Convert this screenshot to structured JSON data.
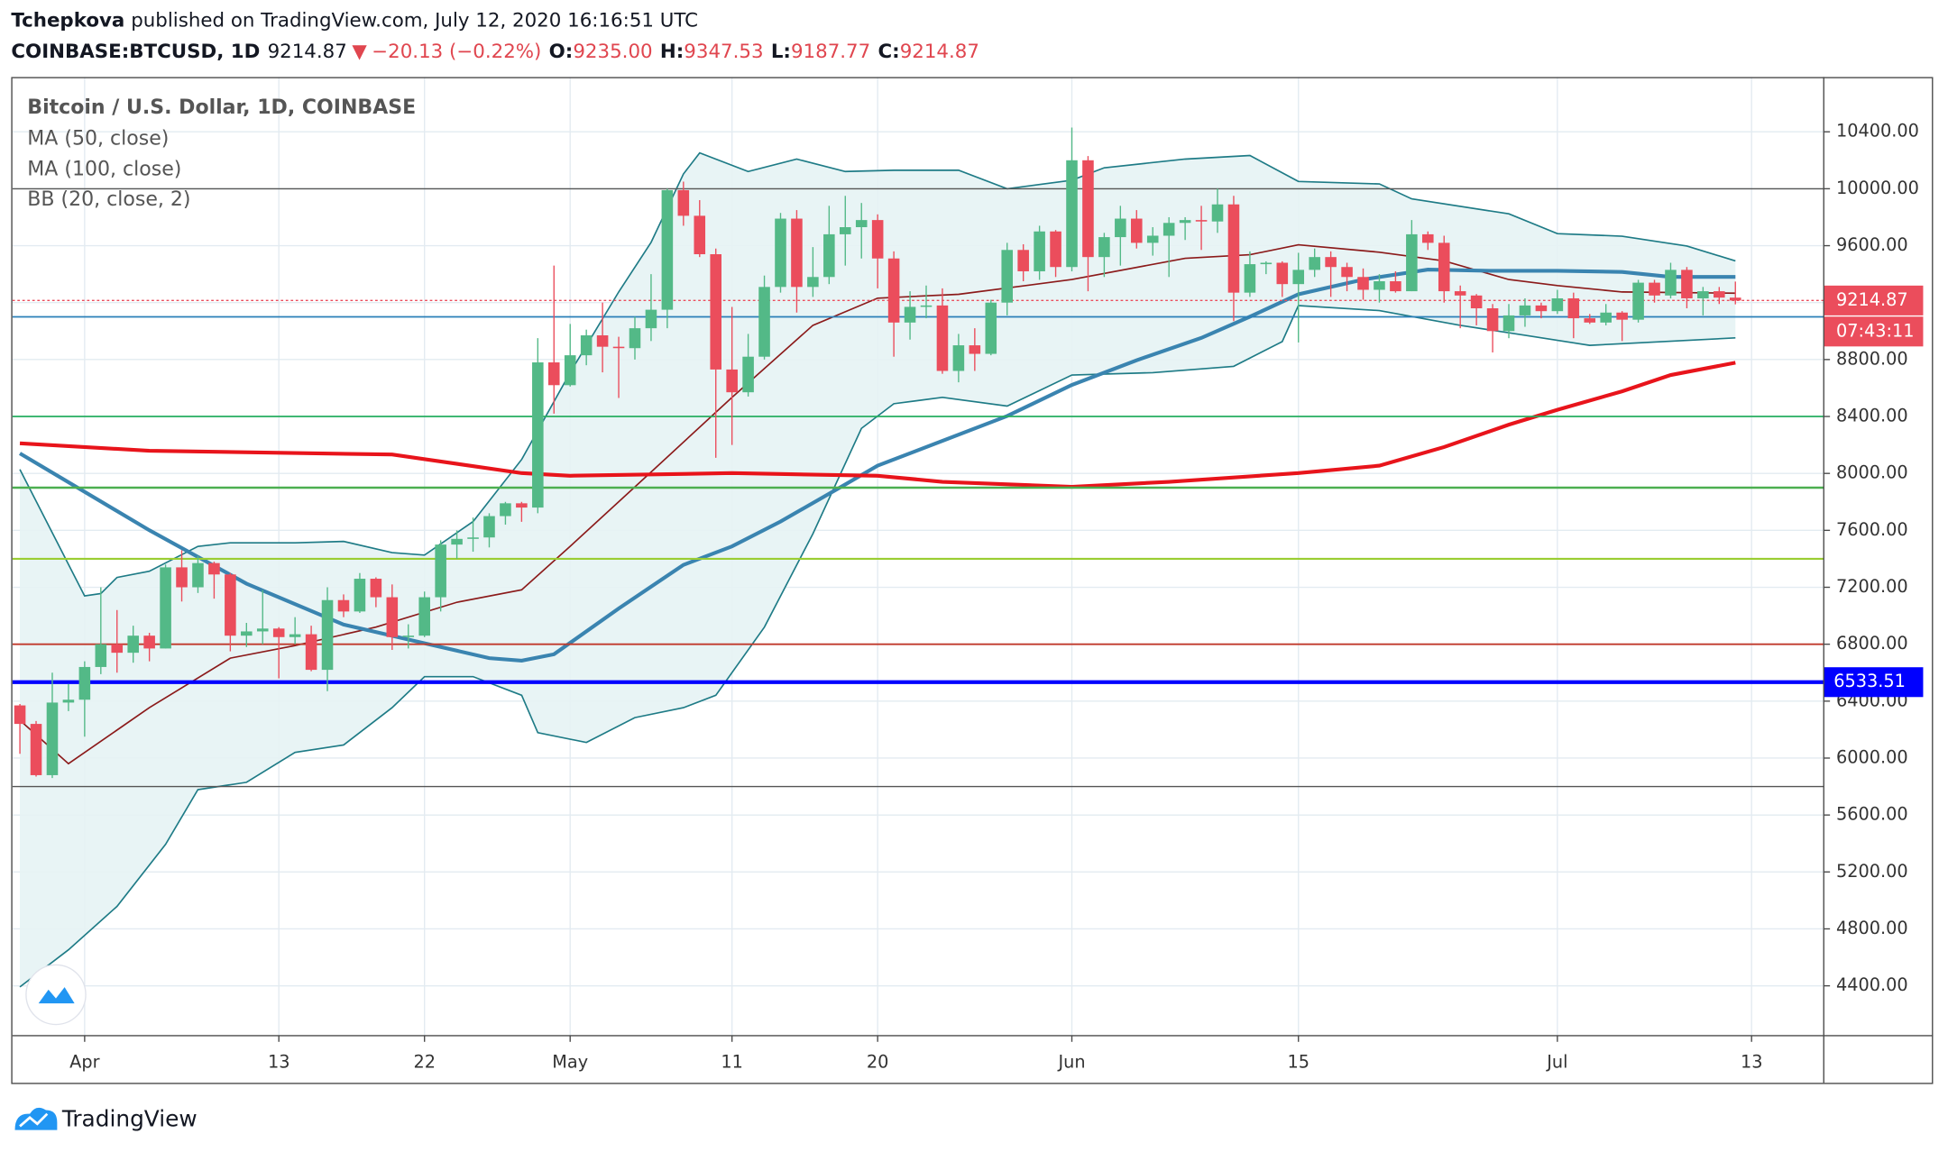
{
  "header": {
    "author": "Tchepkova",
    "published": "published on TradingView.com, July 12, 2020 16:16:51 UTC",
    "symbol": "COINBASE:BTCUSD, 1D",
    "last": "9214.87",
    "arrow": "▼",
    "change": "−20.13 (−0.22%)",
    "ohlc": [
      {
        "label": "O:",
        "value": "9235.00"
      },
      {
        "label": "H:",
        "value": "9347.53"
      },
      {
        "label": "L:",
        "value": "9187.77"
      },
      {
        "label": "C:",
        "value": "9214.87"
      }
    ]
  },
  "footer": {
    "brand": "TradingView"
  },
  "chart_data": {
    "type": "candlestick",
    "title": "Bitcoin / U.S. Dollar, 1D, COINBASE",
    "up_color": "#53b987",
    "down_color": "#eb4d5c",
    "grid": true,
    "countdown": "07:43:11",
    "xlim": [
      "2020-03-27",
      "2020-07-17"
    ],
    "ylim": [
      4050,
      10785
    ],
    "xticks": [
      {
        "value": "2020-04-01",
        "label": "Apr"
      },
      {
        "value": "2020-04-13",
        "label": "13"
      },
      {
        "value": "2020-04-22",
        "label": "22"
      },
      {
        "value": "2020-05-01",
        "label": "May"
      },
      {
        "value": "2020-05-11",
        "label": "11"
      },
      {
        "value": "2020-05-20",
        "label": "20"
      },
      {
        "value": "2020-06-01",
        "label": "Jun"
      },
      {
        "value": "2020-06-15",
        "label": "15"
      },
      {
        "value": "2020-07-01",
        "label": "Jul"
      },
      {
        "value": "2020-07-13",
        "label": "13"
      }
    ],
    "yticks": [
      {
        "value": 4400,
        "label": "4400.00"
      },
      {
        "value": 4800,
        "label": "4800.00"
      },
      {
        "value": 5200,
        "label": "5200.00"
      },
      {
        "value": 5600,
        "label": "5600.00"
      },
      {
        "value": 6000,
        "label": "6000.00"
      },
      {
        "value": 6400,
        "label": "6400.00"
      },
      {
        "value": 6800,
        "label": "6800.00"
      },
      {
        "value": 7200,
        "label": "7200.00"
      },
      {
        "value": 7600,
        "label": "7600.00"
      },
      {
        "value": 8000,
        "label": "8000.00"
      },
      {
        "value": 8400,
        "label": "8400.00"
      },
      {
        "value": 8800,
        "label": "8800.00"
      },
      {
        "value": 9200,
        "label": "9200.00"
      },
      {
        "value": 9600,
        "label": "9600.00"
      },
      {
        "value": 10000,
        "label": "10000.00"
      },
      {
        "value": 10400,
        "label": "10400.00"
      }
    ],
    "dates": [
      "2020-03-28",
      "2020-03-29",
      "2020-03-30",
      "2020-03-31",
      "2020-04-01",
      "2020-04-02",
      "2020-04-03",
      "2020-04-04",
      "2020-04-05",
      "2020-04-06",
      "2020-04-07",
      "2020-04-08",
      "2020-04-09",
      "2020-04-10",
      "2020-04-11",
      "2020-04-12",
      "2020-04-13",
      "2020-04-14",
      "2020-04-15",
      "2020-04-16",
      "2020-04-17",
      "2020-04-18",
      "2020-04-19",
      "2020-04-20",
      "2020-04-21",
      "2020-04-22",
      "2020-04-23",
      "2020-04-24",
      "2020-04-25",
      "2020-04-26",
      "2020-04-27",
      "2020-04-28",
      "2020-04-29",
      "2020-04-30",
      "2020-05-01",
      "2020-05-02",
      "2020-05-03",
      "2020-05-04",
      "2020-05-05",
      "2020-05-06",
      "2020-05-07",
      "2020-05-08",
      "2020-05-09",
      "2020-05-10",
      "2020-05-11",
      "2020-05-12",
      "2020-05-13",
      "2020-05-14",
      "2020-05-15",
      "2020-05-16",
      "2020-05-17",
      "2020-05-18",
      "2020-05-19",
      "2020-05-20",
      "2020-05-21",
      "2020-05-22",
      "2020-05-23",
      "2020-05-24",
      "2020-05-25",
      "2020-05-26",
      "2020-05-27",
      "2020-05-28",
      "2020-05-29",
      "2020-05-30",
      "2020-05-31",
      "2020-06-01",
      "2020-06-02",
      "2020-06-03",
      "2020-06-04",
      "2020-06-05",
      "2020-06-06",
      "2020-06-07",
      "2020-06-08",
      "2020-06-09",
      "2020-06-10",
      "2020-06-11",
      "2020-06-12",
      "2020-06-13",
      "2020-06-14",
      "2020-06-15",
      "2020-06-16",
      "2020-06-17",
      "2020-06-18",
      "2020-06-19",
      "2020-06-20",
      "2020-06-21",
      "2020-06-22",
      "2020-06-23",
      "2020-06-24",
      "2020-06-25",
      "2020-06-26",
      "2020-06-27",
      "2020-06-28",
      "2020-06-29",
      "2020-06-30",
      "2020-07-01",
      "2020-07-02",
      "2020-07-03",
      "2020-07-04",
      "2020-07-05",
      "2020-07-06",
      "2020-07-07",
      "2020-07-08",
      "2020-07-09",
      "2020-07-10",
      "2020-07-11",
      "2020-07-12"
    ],
    "open": [
      6370,
      6240,
      5880,
      6390,
      6410,
      6640,
      6800,
      6740,
      6860,
      6770,
      7340,
      7200,
      7370,
      7290,
      6860,
      6890,
      6910,
      6850,
      6870,
      6620,
      7110,
      7030,
      7260,
      7130,
      6850,
      6860,
      7130,
      7500,
      7540,
      7550,
      7700,
      7790,
      7760,
      8780,
      8620,
      8830,
      8970,
      8890,
      8880,
      9020,
      9150,
      9990,
      9810,
      9540,
      8730,
      8570,
      8820,
      9310,
      9790,
      9310,
      9380,
      9680,
      9730,
      9780,
      9510,
      9060,
      9170,
      9180,
      8720,
      8900,
      8840,
      9200,
      9570,
      9420,
      9700,
      9450,
      10200,
      9520,
      9660,
      9790,
      9620,
      9670,
      9760,
      9780,
      9770,
      9890,
      9270,
      9470,
      9480,
      9330,
      9430,
      9520,
      9450,
      9380,
      9290,
      9350,
      9280,
      9680,
      9620,
      9280,
      9250,
      9160,
      9000,
      9110,
      9180,
      9140,
      9230,
      9090,
      9060,
      9130,
      9080,
      9340,
      9250,
      9430,
      9230,
      9280,
      9235
    ],
    "high": [
      6380,
      6260,
      6600,
      6520,
      6680,
      7200,
      7040,
      6930,
      6880,
      7360,
      7460,
      7420,
      7380,
      7300,
      6950,
      7180,
      6920,
      6990,
      6930,
      7200,
      7150,
      7300,
      7270,
      7220,
      6940,
      7170,
      7530,
      7600,
      7690,
      7720,
      7800,
      7800,
      8950,
      9460,
      9050,
      9010,
      9200,
      8960,
      9100,
      9400,
      10000,
      10050,
      9920,
      9580,
      9170,
      8980,
      9390,
      9830,
      9850,
      9590,
      9880,
      9950,
      9900,
      9820,
      9560,
      9280,
      9320,
      9300,
      8980,
      9020,
      9220,
      9620,
      9610,
      9740,
      9710,
      10430,
      10230,
      9690,
      9880,
      9850,
      9730,
      9800,
      9800,
      9880,
      10000,
      9950,
      9560,
      9490,
      9490,
      9550,
      9580,
      9560,
      9480,
      9440,
      9400,
      9420,
      9780,
      9700,
      9670,
      9320,
      9260,
      9190,
      9190,
      9230,
      9200,
      9290,
      9270,
      9120,
      9190,
      9140,
      9360,
      9360,
      9480,
      9450,
      9310,
      9310,
      9347.53
    ],
    "low": [
      6030,
      5870,
      5860,
      6330,
      6150,
      6590,
      6600,
      6670,
      6680,
      6770,
      7100,
      7160,
      7120,
      6750,
      6780,
      6800,
      6560,
      6800,
      6610,
      6470,
      6990,
      7020,
      7060,
      6760,
      6770,
      6850,
      7030,
      7400,
      7450,
      7480,
      7640,
      7660,
      7720,
      8420,
      8610,
      8760,
      8710,
      8530,
      8800,
      8930,
      9020,
      9740,
      9520,
      8110,
      8200,
      8540,
      8800,
      9270,
      9130,
      9240,
      9330,
      9460,
      9510,
      9300,
      8820,
      8940,
      9090,
      8700,
      8640,
      8720,
      8830,
      9110,
      9350,
      9360,
      9380,
      9420,
      9280,
      9380,
      9460,
      9580,
      9530,
      9380,
      9640,
      9570,
      9690,
      9070,
      9240,
      9400,
      9240,
      8920,
      9380,
      9240,
      9280,
      9220,
      9200,
      9270,
      9280,
      9570,
      9200,
      9020,
      9040,
      8850,
      8950,
      9030,
      9090,
      9120,
      8950,
      9050,
      9040,
      8930,
      9060,
      9200,
      9230,
      9160,
      9110,
      9190,
      9187.77
    ],
    "close": [
      6240,
      5880,
      6390,
      6410,
      6640,
      6800,
      6740,
      6860,
      6770,
      7340,
      7200,
      7370,
      7290,
      6860,
      6890,
      6910,
      6850,
      6870,
      6620,
      7110,
      7030,
      7260,
      7130,
      6850,
      6860,
      7130,
      7500,
      7540,
      7550,
      7700,
      7790,
      7760,
      8780,
      8620,
      8830,
      8970,
      8890,
      8880,
      9020,
      9150,
      9990,
      9810,
      9540,
      8730,
      8570,
      8820,
      9310,
      9790,
      9310,
      9380,
      9680,
      9730,
      9780,
      9510,
      9060,
      9170,
      9180,
      8720,
      8900,
      8840,
      9200,
      9570,
      9420,
      9700,
      9450,
      10200,
      9520,
      9660,
      9790,
      9620,
      9670,
      9760,
      9780,
      9770,
      9890,
      9270,
      9470,
      9480,
      9330,
      9430,
      9520,
      9450,
      9380,
      9290,
      9350,
      9280,
      9680,
      9620,
      9280,
      9250,
      9160,
      9000,
      9110,
      9180,
      9140,
      9230,
      9090,
      9060,
      9130,
      9080,
      9340,
      9250,
      9430,
      9230,
      9280,
      9235,
      9214.87
    ],
    "indicators": [
      {
        "name": "MA (50, close)",
        "color": "#3a84b0",
        "width": 3,
        "x": [
          "2020-03-28",
          "2020-04-05",
          "2020-04-11",
          "2020-04-17",
          "2020-04-22",
          "2020-04-26",
          "2020-04-28",
          "2020-04-30",
          "2020-05-04",
          "2020-05-08",
          "2020-05-11",
          "2020-05-14",
          "2020-05-18",
          "2020-05-20",
          "2020-05-24",
          "2020-05-28",
          "2020-06-01",
          "2020-06-05",
          "2020-06-09",
          "2020-06-12",
          "2020-06-15",
          "2020-06-19",
          "2020-06-23",
          "2020-06-27",
          "2020-07-01",
          "2020-07-05",
          "2020-07-08",
          "2020-07-12"
        ],
        "values": [
          8141,
          7601,
          7226,
          6938,
          6807,
          6702,
          6685,
          6729,
          7051,
          7357,
          7487,
          7662,
          7923,
          8054,
          8229,
          8403,
          8621,
          8795,
          8952,
          9101,
          9258,
          9362,
          9432,
          9423,
          9423,
          9415,
          9380,
          9380
        ]
      },
      {
        "name": "MA (100, close)",
        "color": "#e8141b",
        "width": 3,
        "x": [
          "2020-03-28",
          "2020-04-05",
          "2020-04-20",
          "2020-04-28",
          "2020-05-01",
          "2020-05-11",
          "2020-05-20",
          "2020-05-24",
          "2020-06-01",
          "2020-06-07",
          "2020-06-15",
          "2020-06-20",
          "2020-06-24",
          "2020-06-28",
          "2020-07-01",
          "2020-07-05",
          "2020-07-08",
          "2020-07-12"
        ],
        "values": [
          8211,
          8159,
          8133,
          8002,
          7984,
          8002,
          7984,
          7941,
          7906,
          7941,
          8002,
          8054,
          8185,
          8342,
          8447,
          8577,
          8691,
          8778
        ]
      }
    ],
    "bb": {
      "name": "BB (20, close, 2)",
      "fill": "#e6f3f4",
      "upper": {
        "color": "#1e7b86",
        "x": [
          "2020-03-28",
          "2020-04-01",
          "2020-04-02",
          "2020-04-03",
          "2020-04-05",
          "2020-04-08",
          "2020-04-10",
          "2020-04-14",
          "2020-04-17",
          "2020-04-20",
          "2020-04-22",
          "2020-04-25",
          "2020-04-28",
          "2020-05-01",
          "2020-05-04",
          "2020-05-06",
          "2020-05-08",
          "2020-05-09",
          "2020-05-12",
          "2020-05-15",
          "2020-05-18",
          "2020-05-21",
          "2020-05-25",
          "2020-05-28",
          "2020-06-01",
          "2020-06-03",
          "2020-06-08",
          "2020-06-12",
          "2020-06-15",
          "2020-06-20",
          "2020-06-22",
          "2020-06-28",
          "2020-07-01",
          "2020-07-05",
          "2020-07-09",
          "2020-07-12"
        ],
        "values": [
          8028,
          7139,
          7156,
          7269,
          7313,
          7487,
          7513,
          7513,
          7522,
          7444,
          7426,
          7662,
          8098,
          8708,
          9275,
          9624,
          10104,
          10252,
          10121,
          10208,
          10121,
          10130,
          10130,
          10000,
          10060,
          10147,
          10208,
          10234,
          10051,
          10034,
          9929,
          9824,
          9685,
          9667,
          9598,
          9493
        ]
      },
      "basis": {
        "color": "#8b1a1a",
        "x": [
          "2020-03-28",
          "2020-03-31",
          "2020-04-05",
          "2020-04-10",
          "2020-04-14",
          "2020-04-19",
          "2020-04-24",
          "2020-04-28",
          "2020-05-01",
          "2020-05-06",
          "2020-05-11",
          "2020-05-16",
          "2020-05-20",
          "2020-05-25",
          "2020-06-01",
          "2020-06-08",
          "2020-06-12",
          "2020-06-15",
          "2020-06-20",
          "2020-06-24",
          "2020-06-28",
          "2020-07-01",
          "2020-07-05",
          "2020-07-12"
        ],
        "values": [
          6266,
          5961,
          6354,
          6702,
          6790,
          6920,
          7095,
          7182,
          7487,
          8010,
          8534,
          9040,
          9231,
          9258,
          9362,
          9511,
          9537,
          9606,
          9554,
          9493,
          9362,
          9319,
          9275,
          9266
        ]
      },
      "lower": {
        "color": "#1e7b86",
        "x": [
          "2020-03-28",
          "2020-03-31",
          "2020-04-03",
          "2020-04-06",
          "2020-04-08",
          "2020-04-11",
          "2020-04-14",
          "2020-04-17",
          "2020-04-20",
          "2020-04-22",
          "2020-04-25",
          "2020-04-28",
          "2020-04-29",
          "2020-05-02",
          "2020-05-05",
          "2020-05-08",
          "2020-05-10",
          "2020-05-13",
          "2020-05-16",
          "2020-05-19",
          "2020-05-21",
          "2020-05-24",
          "2020-05-28",
          "2020-06-01",
          "2020-06-06",
          "2020-06-11",
          "2020-06-14",
          "2020-06-15",
          "2020-06-20",
          "2020-06-25",
          "2020-06-29",
          "2020-07-03",
          "2020-07-12"
        ],
        "values": [
          4392,
          4653,
          4958,
          5394,
          5778,
          5830,
          6040,
          6092,
          6354,
          6572,
          6572,
          6441,
          6179,
          6110,
          6284,
          6354,
          6441,
          6920,
          7575,
          8316,
          8490,
          8534,
          8473,
          8691,
          8708,
          8752,
          8926,
          9179,
          9144,
          9040,
          8970,
          8900,
          8952
        ]
      }
    },
    "levels": [
      {
        "value": 10000,
        "color": "#555555",
        "width": 1
      },
      {
        "value": 9100,
        "color": "#2a7fb8",
        "width": 1.3
      },
      {
        "value": 8400,
        "color": "#27ae60",
        "width": 1.3
      },
      {
        "value": 7900,
        "color": "#4caf50",
        "width": 1.8
      },
      {
        "value": 7400,
        "color": "#9acd32",
        "width": 1.5
      },
      {
        "value": 6800,
        "color": "#c0392b",
        "width": 1.3
      },
      {
        "value": 6533.51,
        "color": "#0000ff",
        "width": 3,
        "labelled": true
      },
      {
        "value": 5800,
        "color": "#555555",
        "width": 1
      }
    ]
  }
}
